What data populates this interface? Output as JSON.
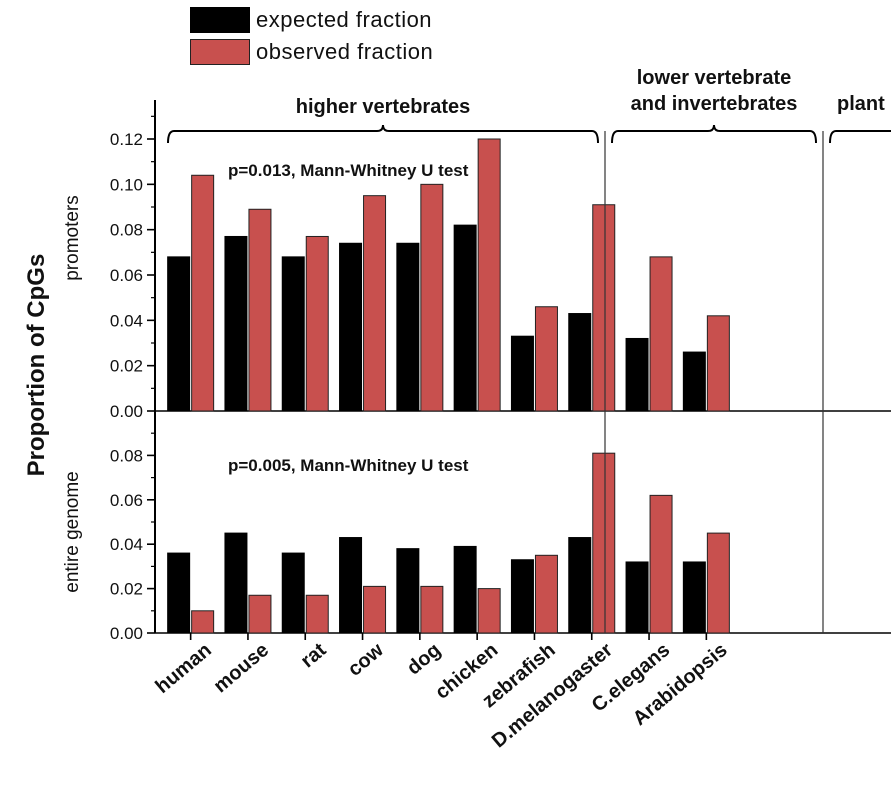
{
  "legend": {
    "expected_label": "expected fraction",
    "observed_label": "observed fraction"
  },
  "colors": {
    "expected": "#000000",
    "observed": "#c8504e",
    "axis": "#000000"
  },
  "chart_data": {
    "type": "bar",
    "ylabel": "Proportion of CpGs",
    "categories": [
      "human",
      "mouse",
      "rat",
      "cow",
      "dog",
      "chicken",
      "zebrafish",
      "D.melanogaster",
      "C.elegans",
      "Arabidopsis"
    ],
    "groups": [
      {
        "label": "higher vertebrates",
        "categories": [
          "human",
          "mouse",
          "rat",
          "cow",
          "dog",
          "chicken"
        ]
      },
      {
        "label": "lower vertebrate and invertebrates",
        "line1": "lower vertebrate",
        "line2": "and invertebrates",
        "categories": [
          "zebrafish",
          "D.melanogaster",
          "C.elegans"
        ]
      },
      {
        "label": "plant",
        "categories": [
          "Arabidopsis"
        ]
      }
    ],
    "panels": [
      {
        "name": "promoters",
        "ylabel": "promoters",
        "annotation": "p=0.013, Mann-Whitney U test",
        "ylim": [
          0,
          0.135
        ],
        "yticks": [
          "0.00",
          "0.02",
          "0.04",
          "0.06",
          "0.08",
          "0.10",
          "0.12"
        ],
        "series": [
          {
            "name": "expected fraction",
            "values": [
              0.068,
              0.077,
              0.068,
              0.074,
              0.074,
              0.082,
              0.033,
              0.043,
              0.032,
              0.026
            ]
          },
          {
            "name": "observed fraction",
            "values": [
              0.104,
              0.089,
              0.077,
              0.095,
              0.1,
              0.12,
              0.046,
              0.091,
              0.068,
              0.042
            ]
          }
        ]
      },
      {
        "name": "entire genome",
        "ylabel": "entire genome",
        "annotation": "p=0.005, Mann-Whitney U test",
        "ylim": [
          0,
          0.1
        ],
        "yticks": [
          "0.00",
          "0.02",
          "0.04",
          "0.06",
          "0.08"
        ],
        "series": [
          {
            "name": "expected fraction",
            "values": [
              0.036,
              0.045,
              0.036,
              0.043,
              0.038,
              0.039,
              0.033,
              0.043,
              0.032,
              0.032
            ]
          },
          {
            "name": "observed fraction",
            "values": [
              0.01,
              0.017,
              0.017,
              0.021,
              0.021,
              0.02,
              0.035,
              0.081,
              0.062,
              0.045
            ]
          }
        ]
      }
    ]
  }
}
